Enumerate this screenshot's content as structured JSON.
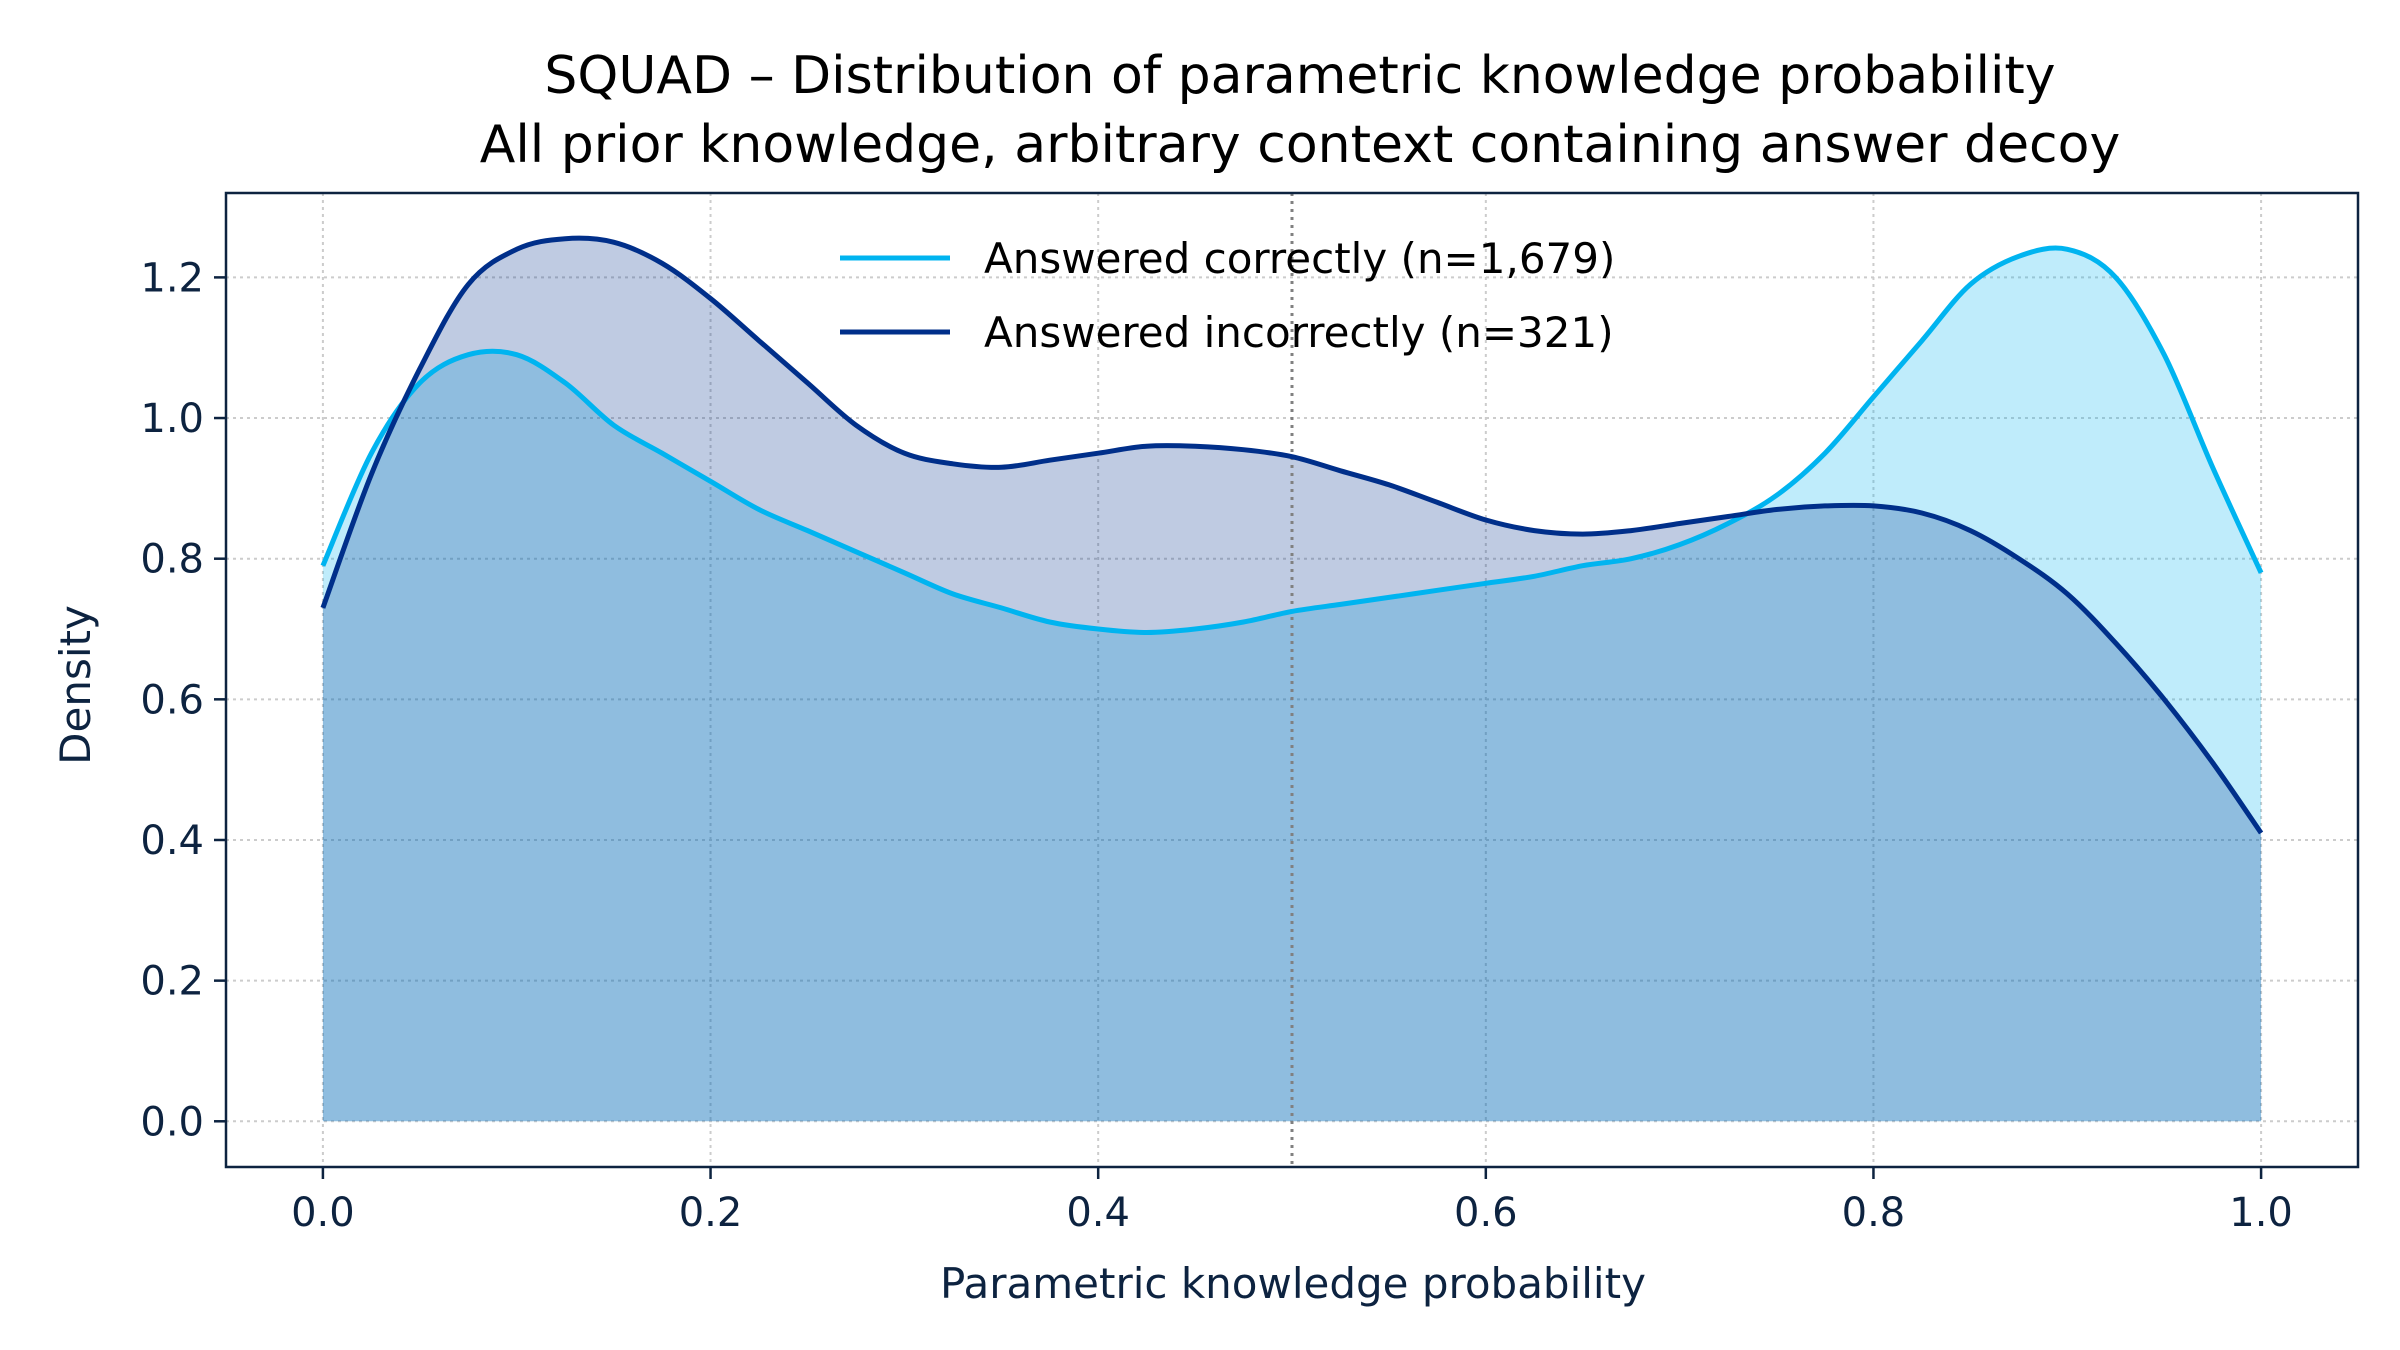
{
  "chart_data": {
    "type": "area",
    "title": "SQUAD – Distribution of parametric knowledge probability",
    "subtitle": "All prior knowledge, arbitrary context containing answer decoy",
    "xlabel": "Parametric knowledge probability",
    "ylabel": "Density",
    "xlim": [
      -0.05,
      1.05
    ],
    "ylim": [
      -0.065,
      1.32
    ],
    "xticks": [
      0.0,
      0.2,
      0.4,
      0.6,
      0.8,
      1.0
    ],
    "xtick_labels": [
      "0.0",
      "0.2",
      "0.4",
      "0.6",
      "0.8",
      "1.0"
    ],
    "yticks": [
      0.0,
      0.2,
      0.4,
      0.6,
      0.8,
      1.0,
      1.2
    ],
    "ytick_labels": [
      "0.0",
      "0.2",
      "0.4",
      "0.6",
      "0.8",
      "1.0",
      "1.2"
    ],
    "grid": true,
    "legend_position": "top-center",
    "reference_line_x": 0.5,
    "x": [
      0.0,
      0.025,
      0.05,
      0.075,
      0.1,
      0.125,
      0.15,
      0.175,
      0.2,
      0.225,
      0.25,
      0.275,
      0.3,
      0.325,
      0.35,
      0.375,
      0.4,
      0.425,
      0.45,
      0.475,
      0.5,
      0.525,
      0.55,
      0.575,
      0.6,
      0.625,
      0.65,
      0.675,
      0.7,
      0.725,
      0.75,
      0.775,
      0.8,
      0.825,
      0.85,
      0.875,
      0.9,
      0.925,
      0.95,
      0.975,
      1.0
    ],
    "series": [
      {
        "name": "Answered correctly (n=1,679)",
        "color": "#00b4f0",
        "fill_color": "#00b4f0",
        "values": [
          0.79,
          0.95,
          1.05,
          1.09,
          1.09,
          1.05,
          0.99,
          0.95,
          0.91,
          0.87,
          0.84,
          0.81,
          0.78,
          0.75,
          0.73,
          0.71,
          0.7,
          0.695,
          0.7,
          0.71,
          0.725,
          0.735,
          0.745,
          0.755,
          0.765,
          0.775,
          0.79,
          0.8,
          0.82,
          0.85,
          0.89,
          0.95,
          1.03,
          1.11,
          1.19,
          1.23,
          1.24,
          1.2,
          1.09,
          0.93,
          0.78
        ]
      },
      {
        "name": "Answered incorrectly (n=321)",
        "color": "#002f8a",
        "fill_color": "#002f8a",
        "values": [
          0.73,
          0.92,
          1.07,
          1.19,
          1.24,
          1.255,
          1.25,
          1.22,
          1.17,
          1.11,
          1.05,
          0.99,
          0.95,
          0.935,
          0.93,
          0.94,
          0.95,
          0.96,
          0.96,
          0.955,
          0.945,
          0.925,
          0.905,
          0.88,
          0.855,
          0.84,
          0.835,
          0.84,
          0.85,
          0.86,
          0.87,
          0.875,
          0.875,
          0.865,
          0.84,
          0.8,
          0.75,
          0.68,
          0.6,
          0.51,
          0.41
        ]
      }
    ]
  }
}
